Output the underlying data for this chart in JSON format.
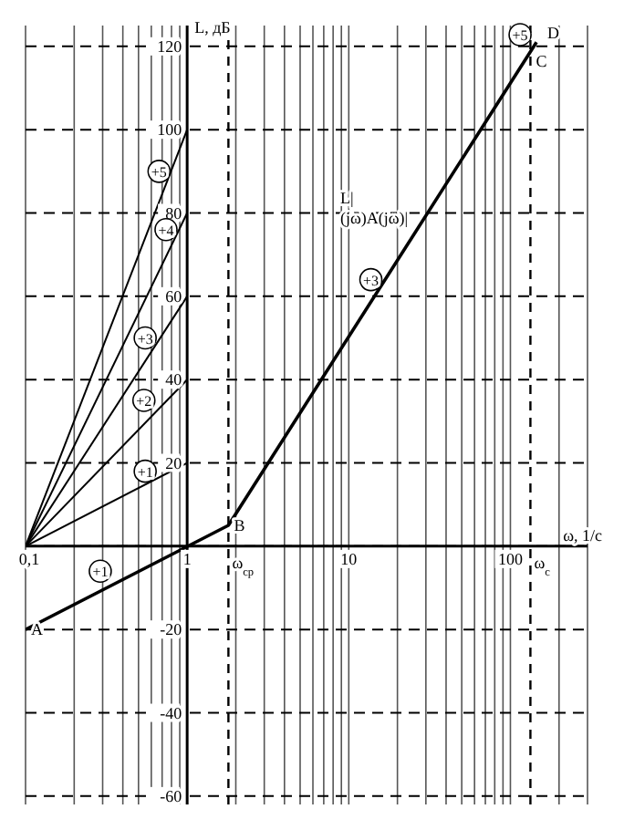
{
  "chart_data": {
    "type": "line",
    "xlabel": "ω, 1/с",
    "ylabel": "L, дБ",
    "log": "x",
    "xlim": [
      0.1,
      300
    ],
    "ylim": [
      -62,
      125
    ],
    "xticks": [
      {
        "value": 0.1,
        "label": "0,1"
      },
      {
        "value": 0.2,
        "label": null
      },
      {
        "value": 0.3,
        "label": null
      },
      {
        "value": 0.4,
        "label": null
      },
      {
        "value": 0.5,
        "label": null
      },
      {
        "value": 0.6,
        "label": null
      },
      {
        "value": 0.7,
        "label": null
      },
      {
        "value": 0.8,
        "label": null
      },
      {
        "value": 0.9,
        "label": null
      },
      1,
      {
        "value": 2,
        "label": null
      },
      {
        "value": 3,
        "label": null
      },
      {
        "value": 4,
        "label": null
      },
      {
        "value": 5,
        "label": null
      },
      {
        "value": 6,
        "label": null
      },
      {
        "value": 7,
        "label": null
      },
      {
        "value": 8,
        "label": null
      },
      {
        "value": 9,
        "label": null
      },
      10,
      {
        "value": 20,
        "label": null
      },
      {
        "value": 30,
        "label": null
      },
      {
        "value": 40,
        "label": null
      },
      {
        "value": 50,
        "label": null
      },
      {
        "value": 60,
        "label": null
      },
      {
        "value": 70,
        "label": null
      },
      {
        "value": 80,
        "label": null
      },
      {
        "value": 90,
        "label": null
      },
      100,
      {
        "value": 200,
        "label": null
      },
      {
        "value": 300,
        "label": null
      }
    ],
    "yticks": [
      -60,
      -40,
      -20,
      {
        "value": 0,
        "label": null
      },
      20,
      40,
      60,
      80,
      100,
      120
    ],
    "grid": true,
    "marker": "none",
    "line_style": "solid",
    "series": [
      {
        "color": "#000000",
        "x": [
          0.1,
          1
        ],
        "values": [
          0,
          20
        ]
      },
      {
        "color": "#000000",
        "x": [
          0.1,
          1
        ],
        "values": [
          0,
          40
        ]
      },
      {
        "color": "#000000",
        "x": [
          0.1,
          1
        ],
        "values": [
          0,
          60
        ]
      },
      {
        "color": "#000000",
        "x": [
          0.1,
          1
        ],
        "values": [
          0,
          80
        ]
      },
      {
        "color": "#000000",
        "x": [
          0.1,
          1
        ],
        "values": [
          0,
          100
        ]
      },
      {
        "color": "#000000",
        "x": [
          0.1,
          1.8,
          145
        ],
        "values": [
          -20,
          5,
          121
        ]
      }
    ],
    "ref_lines": [
      {
        "axis": "x",
        "value": 1.8,
        "line_style": "dashed",
        "label": "ω$_{ср}$"
      },
      {
        "axis": "x",
        "value": 133,
        "line_style": "dashed",
        "label": "ω$_{с}$"
      }
    ],
    "annotations": [
      {
        "text": "A",
        "x": 0.1,
        "y": -20
      },
      {
        "text": "B",
        "x": 1.8,
        "y": 5
      },
      {
        "text": "C",
        "x": 133,
        "y": 120
      },
      {
        "text": "D",
        "x": 145,
        "y": 121
      },
      {
        "text": "+1",
        "x": 0.29,
        "y": -6
      },
      {
        "text": "+1",
        "x": 0.55,
        "y": 18
      },
      {
        "text": "+2",
        "x": 0.54,
        "y": 35
      },
      {
        "text": "+3",
        "x": 0.55,
        "y": 50
      },
      {
        "text": "+4",
        "x": 0.74,
        "y": 76
      },
      {
        "text": "+5",
        "x": 0.67,
        "y": 90
      },
      {
        "text": "+3",
        "x": 13.7,
        "y": 64
      },
      "+5",
      "L|\n(jω)A(jω)|"
    ]
  }
}
